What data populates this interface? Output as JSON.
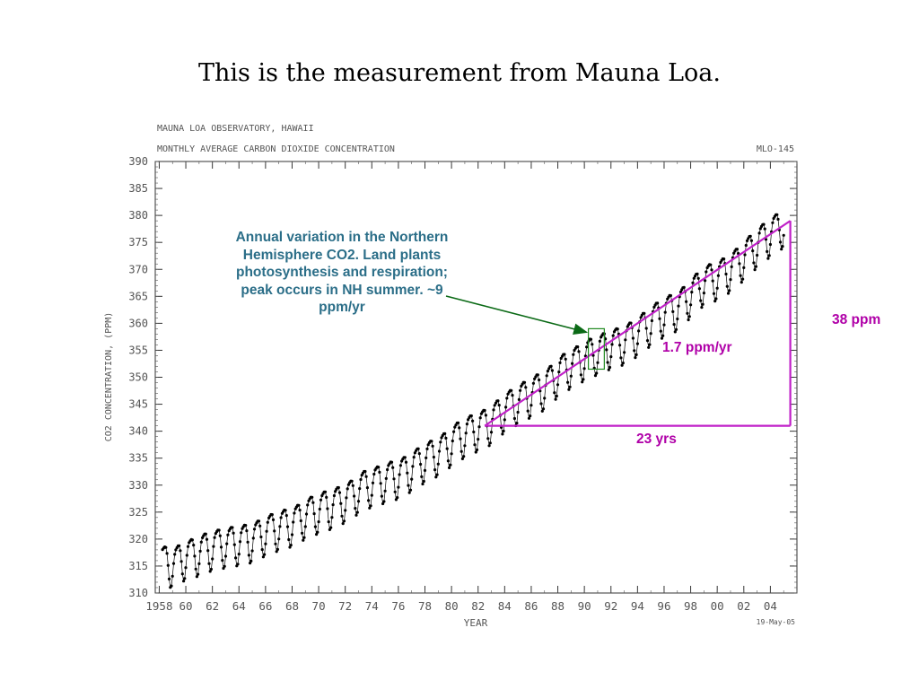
{
  "slide": {
    "title": "This is the measurement from Mauna Loa."
  },
  "chart_data": {
    "type": "scatter",
    "header_line1": "MAUNA LOA OBSERVATORY, HAWAII",
    "header_line2": "MONTHLY AVERAGE CARBON DIOXIDE CONCENTRATION",
    "header_code": "MLO-145",
    "ylabel": "CO2 CONCENTRATION, (PPM)",
    "xlabel": "YEAR",
    "date_stamp": "19-May-05",
    "xlim": [
      1957.7,
      2006.0
    ],
    "ylim": [
      310,
      390
    ],
    "y_ticks": [
      310,
      315,
      320,
      325,
      330,
      335,
      340,
      345,
      350,
      355,
      360,
      365,
      370,
      375,
      380,
      385,
      390
    ],
    "x_ticks": [
      1958,
      1960,
      1962,
      1964,
      1966,
      1968,
      1970,
      1972,
      1974,
      1976,
      1978,
      1980,
      1982,
      1984,
      1986,
      1988,
      1990,
      1992,
      1994,
      1996,
      1998,
      2000,
      2002,
      2004
    ],
    "x_tick_labels": [
      "1958",
      "60",
      "62",
      "64",
      "66",
      "68",
      "70",
      "72",
      "74",
      "76",
      "78",
      "80",
      "82",
      "84",
      "86",
      "88",
      "90",
      "92",
      "94",
      "96",
      "98",
      "00",
      "02",
      "04"
    ],
    "series": [
      {
        "x": [
          1958.5,
          1959.0,
          1959.5,
          1960.0,
          1960.5,
          1961.0,
          1961.5,
          1962.0,
          1962.5,
          1963.0,
          1963.5,
          1964.0,
          1964.5,
          1965.0,
          1965.5,
          1966.0,
          1966.5,
          1967.0,
          1967.5,
          1968.0,
          1968.5,
          1969.0,
          1969.5,
          1970.0,
          1970.5,
          1971.0,
          1971.5,
          1972.0,
          1972.5,
          1973.0,
          1973.5,
          1974.0,
          1974.5,
          1975.0,
          1975.5,
          1976.0,
          1976.5,
          1977.0,
          1977.5,
          1978.0,
          1978.5,
          1979.0,
          1979.5,
          1980.0,
          1980.5,
          1981.0,
          1981.5,
          1982.0,
          1982.5,
          1983.0,
          1983.5,
          1984.0,
          1984.5,
          1985.0,
          1985.5,
          1986.0,
          1986.5,
          1987.0,
          1987.5,
          1988.0,
          1988.5,
          1989.0,
          1989.5,
          1990.0,
          1990.5,
          1991.0,
          1991.5,
          1992.0,
          1992.5,
          1993.0,
          1993.5,
          1994.0,
          1994.5,
          1995.0,
          1995.5,
          1996.0,
          1996.5,
          1997.0,
          1997.5,
          1998.0,
          1998.5,
          1999.0,
          1999.5,
          2000.0,
          2000.5,
          2001.0,
          2001.5,
          2002.0,
          2002.5,
          2003.0,
          2003.5,
          2004.0,
          2004.5,
          2005.0
        ],
        "y": [
          315.7,
          315.3,
          316.0,
          316.9,
          317.1,
          317.6,
          318.2,
          318.5,
          318.9,
          319.0,
          319.4,
          319.4,
          319.8,
          320.0,
          320.6,
          321.3,
          321.8,
          322.2,
          322.6,
          323.0,
          323.5,
          324.5,
          325.0,
          325.4,
          326.0,
          326.2,
          326.8,
          327.5,
          328.0,
          329.2,
          329.8,
          330.3,
          330.6,
          331.1,
          331.5,
          331.8,
          332.4,
          333.3,
          334.0,
          334.9,
          335.4,
          336.1,
          336.8,
          338.0,
          338.8,
          339.5,
          340.1,
          340.7,
          341.1,
          342.0,
          342.9,
          344.3,
          344.8,
          345.7,
          346.3,
          347.0,
          347.7,
          348.3,
          349.3,
          350.8,
          351.5,
          352.4,
          352.9,
          353.8,
          354.3,
          354.9,
          355.3,
          356.0,
          356.2,
          356.8,
          357.3,
          358.4,
          359.1,
          360.3,
          361.0,
          361.9,
          362.4,
          363.0,
          363.9,
          365.6,
          366.4,
          367.8,
          368.1,
          368.7,
          369.2,
          370.3,
          371.0,
          372.5,
          373.4,
          374.8,
          375.6,
          376.8,
          377.4,
          378.5
        ],
        "seasonal_amplitude_ppm": 4.5,
        "color": "#000000"
      }
    ],
    "annotations": {
      "annual": "Annual variation in the Northern Hemisphere CO2. Land plants photosynthesis and respiration; peak occurs in NH summer. ~9 ppm/yr",
      "rate": "1.7 ppm/yr",
      "years": "23 yrs",
      "rise": "38 ppm"
    },
    "trend_line": {
      "x": [
        1982.5,
        2005.5
      ],
      "y": [
        341.0,
        379.0
      ],
      "color": "#c020c8"
    },
    "highlight_box": {
      "x": [
        1990.3,
        1991.5
      ],
      "y": [
        351.5,
        359.0
      ],
      "color": "#1f8a1f"
    },
    "arrow_color": "#0b6a16"
  }
}
